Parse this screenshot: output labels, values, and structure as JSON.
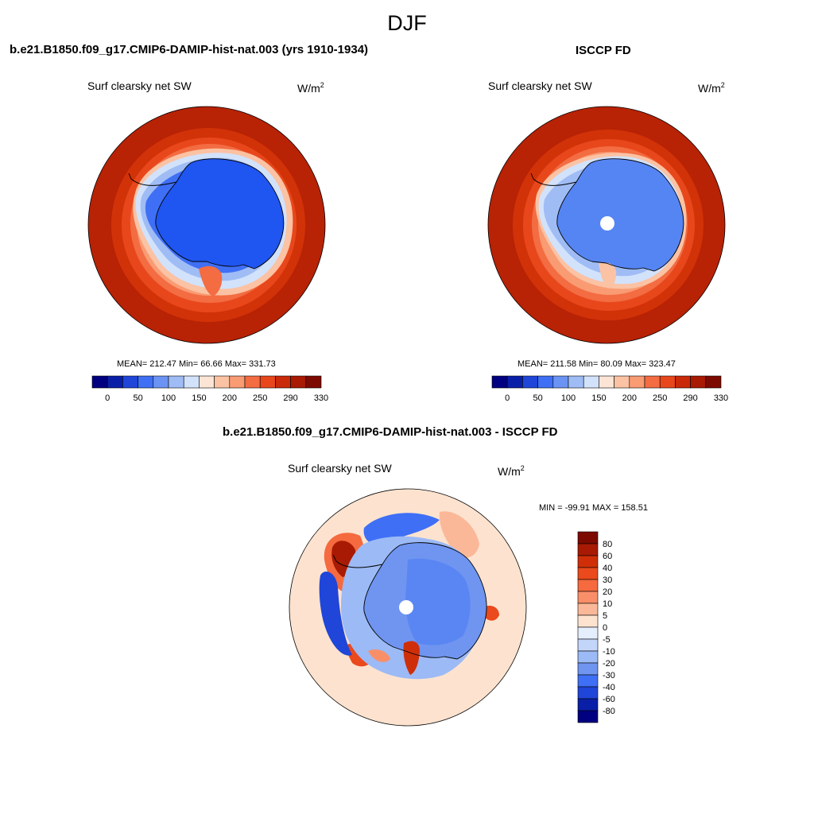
{
  "page_title": "DJF",
  "panels": [
    {
      "id": "model",
      "title": "b.e21.B1850.f09_g17.CMIP6-DAMIP-hist-nat.003 (yrs 1910-1934)",
      "variable": "Surf clearsky net SW",
      "units": "W/m",
      "units_exp": "2",
      "mean_label": "MEAN=",
      "mean": "212.47",
      "min_label": "Min=",
      "min": "66.66",
      "max_label": "Max=",
      "max": "331.73",
      "colorbar_ticks": [
        "0",
        "50",
        "100",
        "150",
        "200",
        "250",
        "290",
        "330"
      ],
      "colorbar_colors": [
        "#000080",
        "#0a1fa8",
        "#1f46d8",
        "#3f6ff5",
        "#6a93f3",
        "#9fbcf5",
        "#d2e2fb",
        "#fde5d6",
        "#fbc2a3",
        "#f99b73",
        "#f36c42",
        "#e8471c",
        "#c92a0a",
        "#a81a03",
        "#7d0a00"
      ]
    },
    {
      "id": "obs",
      "title": "ISCCP FD",
      "variable": "Surf clearsky net SW",
      "units": "W/m",
      "units_exp": "2",
      "mean_label": "MEAN=",
      "mean": "211.58",
      "min_label": "Min=",
      "min": "80.09",
      "max_label": "Max=",
      "max": "323.47",
      "colorbar_ticks": [
        "0",
        "50",
        "100",
        "150",
        "200",
        "250",
        "290",
        "330"
      ],
      "colorbar_colors": [
        "#000080",
        "#0a1fa8",
        "#1f46d8",
        "#3f6ff5",
        "#6a93f3",
        "#9fbcf5",
        "#d2e2fb",
        "#fde5d6",
        "#fbc2a3",
        "#f99b73",
        "#f36c42",
        "#e8471c",
        "#c92a0a",
        "#a81a03",
        "#7d0a00"
      ]
    },
    {
      "id": "diff",
      "title": "b.e21.B1850.f09_g17.CMIP6-DAMIP-hist-nat.003 - ISCCP FD",
      "variable": "Surf clearsky net SW",
      "units": "W/m",
      "units_exp": "2",
      "minmax_label": "MIN = -99.91  MAX = 158.51",
      "colorbar_ticks": [
        "80",
        "60",
        "40",
        "30",
        "20",
        "10",
        "5",
        "0",
        "-5",
        "-10",
        "-20",
        "-30",
        "-40",
        "-60",
        "-80"
      ],
      "colorbar_colors": [
        "#7d0a00",
        "#a81a03",
        "#cf2f08",
        "#ea4a1c",
        "#f56a3e",
        "#f98f69",
        "#fbb898",
        "#fde3cf",
        "#e4eefc",
        "#c3d6fa",
        "#9cbaf5",
        "#6f95f1",
        "#3f6ff5",
        "#1f46d8",
        "#0a1fa8",
        "#000080"
      ]
    }
  ]
}
